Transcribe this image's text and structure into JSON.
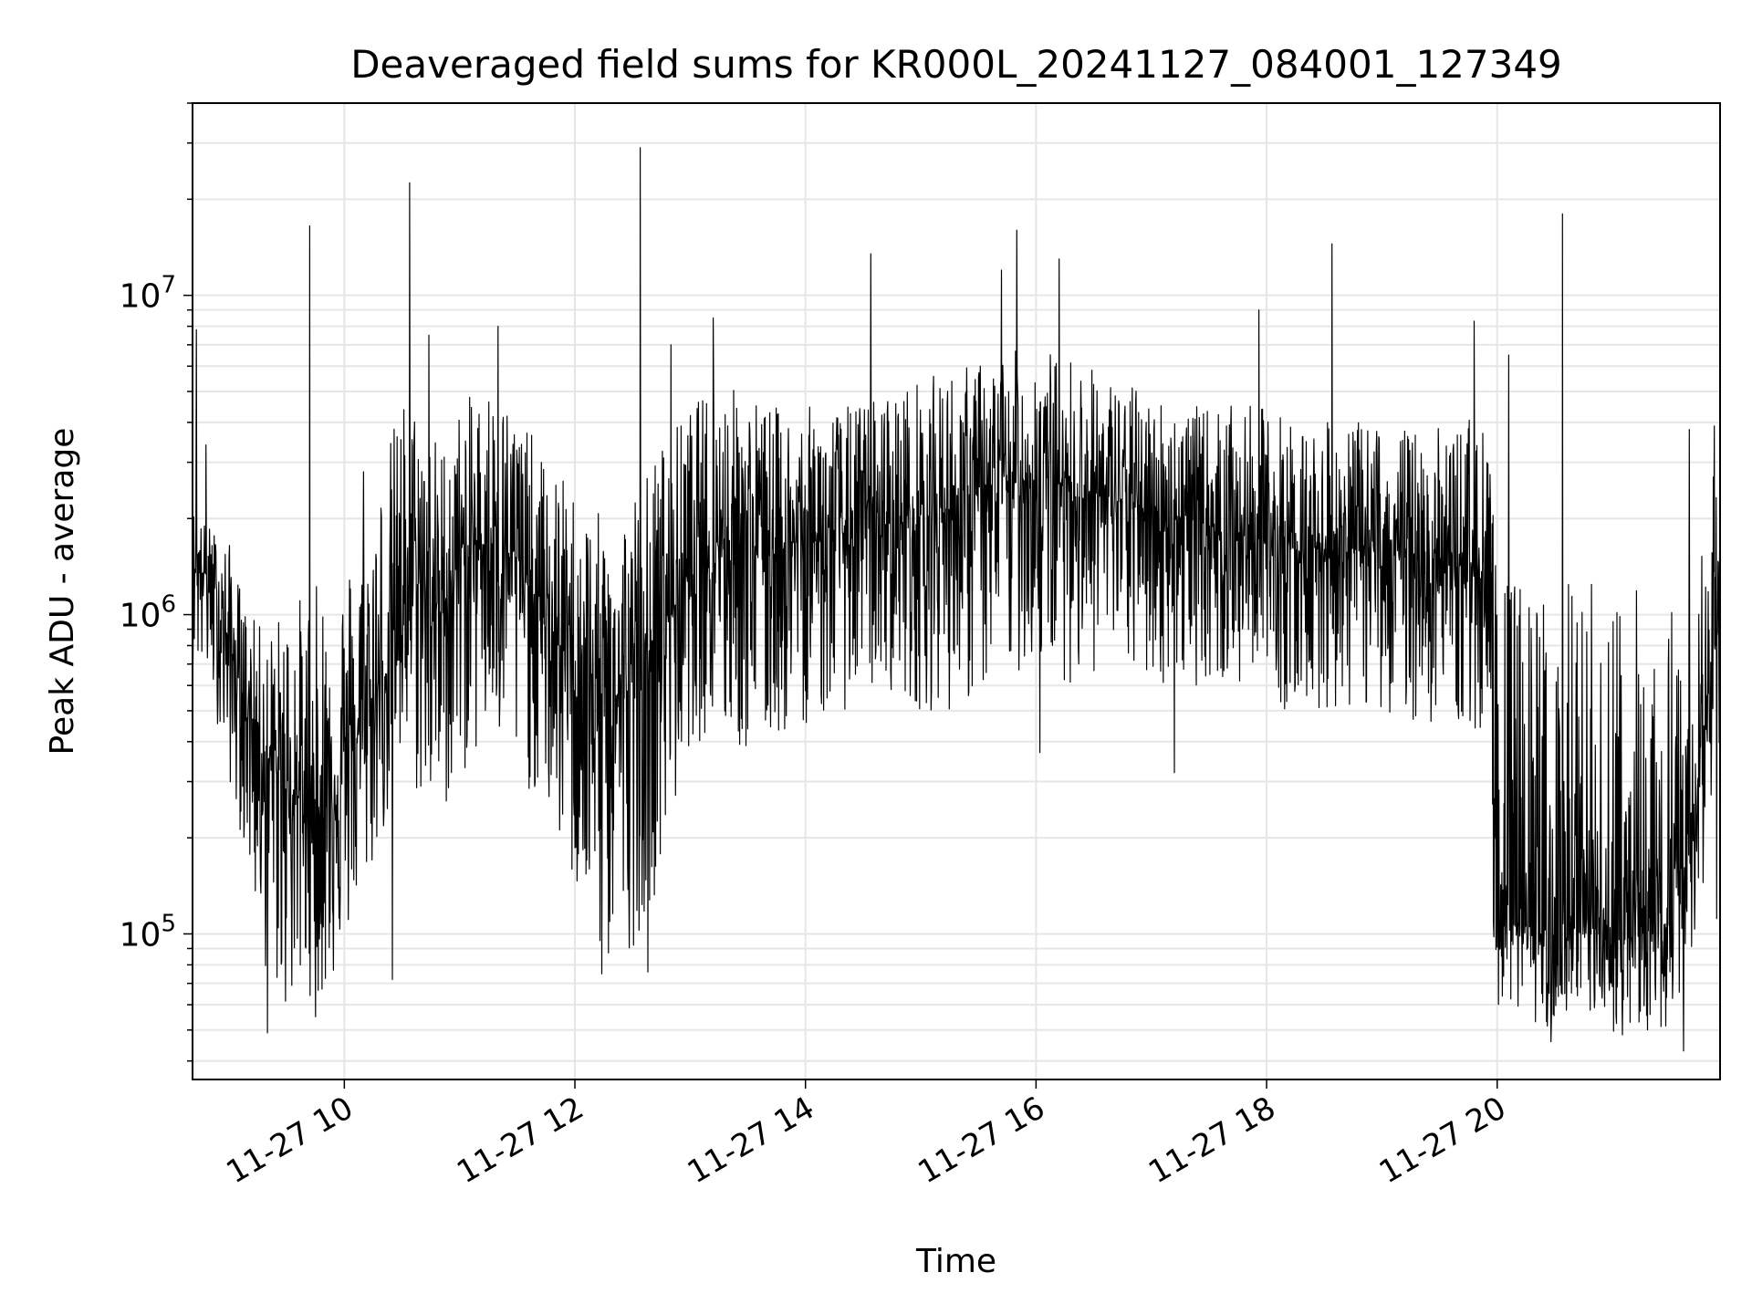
{
  "chart_data": {
    "type": "line",
    "title": "Deaveraged field sums for KR000L_20241127_084001_127349",
    "xlabel": "Time",
    "ylabel": "Peak ADU - average",
    "y_scale": "log",
    "x_range": [
      "2024-11-27 08:41",
      "2024-11-27 21:56"
    ],
    "ylim": [
      35000,
      40000000
    ],
    "grid": true,
    "line_color": "#000000",
    "x_tick_labels": [
      "11-27 10",
      "11-27 12",
      "11-27 14",
      "11-27 16",
      "11-27 18",
      "11-27 20"
    ],
    "x_tick_values": [
      "2024-11-27 10:00",
      "2024-11-27 12:00",
      "2024-11-27 14:00",
      "2024-11-27 16:00",
      "2024-11-27 18:00",
      "2024-11-27 20:00"
    ],
    "y_tick_labels": [
      {
        "base": "10",
        "exp": "5"
      },
      {
        "base": "10",
        "exp": "6"
      },
      {
        "base": "10",
        "exp": "7"
      }
    ],
    "y_tick_values": [
      100000,
      1000000,
      10000000
    ],
    "series": [
      {
        "x": [
          "2024-11-27 08:41",
          "2024-11-27 08:45",
          "2024-11-27 08:50",
          "2024-11-27 09:00",
          "2024-11-27 09:10",
          "2024-11-27 09:20",
          "2024-11-27 09:30",
          "2024-11-27 09:40",
          "2024-11-27 09:50",
          "2024-11-27 10:00",
          "2024-11-27 10:10",
          "2024-11-27 10:20",
          "2024-11-27 10:30",
          "2024-11-27 10:40",
          "2024-11-27 10:50",
          "2024-11-27 11:00",
          "2024-11-27 11:15",
          "2024-11-27 11:30",
          "2024-11-27 11:45",
          "2024-11-27 12:00",
          "2024-11-27 12:15",
          "2024-11-27 12:30",
          "2024-11-27 12:45",
          "2024-11-27 13:00",
          "2024-11-27 13:15",
          "2024-11-27 13:30",
          "2024-11-27 13:45",
          "2024-11-27 14:00",
          "2024-11-27 14:20",
          "2024-11-27 14:40",
          "2024-11-27 15:00",
          "2024-11-27 15:20",
          "2024-11-27 15:40",
          "2024-11-27 16:00",
          "2024-11-27 16:20",
          "2024-11-27 16:40",
          "2024-11-27 17:00",
          "2024-11-27 17:20",
          "2024-11-27 17:40",
          "2024-11-27 18:00",
          "2024-11-27 18:20",
          "2024-11-27 18:40",
          "2024-11-27 19:00",
          "2024-11-27 19:20",
          "2024-11-27 19:40",
          "2024-11-27 19:50",
          "2024-11-27 19:55",
          "2024-11-27 20:00",
          "2024-11-27 20:15",
          "2024-11-27 20:30",
          "2024-11-27 20:45",
          "2024-11-27 21:00",
          "2024-11-27 21:15",
          "2024-11-27 21:30",
          "2024-11-27 21:45",
          "2024-11-27 21:56"
        ],
        "typical": [
          1500000,
          1400000,
          1300000,
          800000,
          500000,
          350000,
          300000,
          250000,
          250000,
          350000,
          450000,
          600000,
          1200000,
          1300000,
          1000000,
          1500000,
          1700000,
          1500000,
          900000,
          700000,
          500000,
          600000,
          900000,
          1400000,
          1800000,
          1700000,
          1600000,
          1700000,
          1800000,
          1900000,
          2000000,
          2200000,
          2500000,
          2700000,
          2500000,
          2300000,
          2100000,
          2000000,
          1800000,
          1700000,
          1600000,
          1600000,
          1600000,
          1500000,
          1400000,
          1500000,
          900000,
          150000,
          100000,
          100000,
          100000,
          95000,
          100000,
          110000,
          300000,
          1200000
        ],
        "low": [
          700000,
          650000,
          600000,
          300000,
          160000,
          70000,
          55000,
          65000,
          60000,
          90000,
          130000,
          200000,
          300000,
          250000,
          220000,
          300000,
          400000,
          300000,
          250000,
          130000,
          75000,
          90000,
          150000,
          400000,
          400000,
          350000,
          400000,
          450000,
          500000,
          600000,
          500000,
          500000,
          600000,
          700000,
          600000,
          700000,
          600000,
          600000,
          600000,
          500000,
          500000,
          500000,
          500000,
          450000,
          450000,
          400000,
          200000,
          60000,
          55000,
          48000,
          50000,
          48000,
          47000,
          50000,
          110000,
          90000
        ],
        "high": [
          2200000,
          2000000,
          1900000,
          1700000,
          1000000,
          900000,
          1100000,
          1200000,
          1300000,
          1400000,
          2000000,
          3000000,
          5000000,
          4500000,
          3500000,
          4500000,
          5500000,
          4500000,
          3000000,
          2500000,
          2000000,
          2500000,
          3500000,
          4500000,
          5500000,
          5000000,
          4500000,
          4500000,
          4500000,
          5000000,
          5500000,
          6000000,
          6500000,
          7000000,
          6500000,
          5500000,
          5000000,
          4500000,
          4500000,
          4500000,
          4000000,
          4000000,
          4000000,
          3800000,
          4000000,
          4500000,
          4000000,
          1300000,
          1300000,
          1300000,
          1300000,
          1300000,
          1300000,
          1200000,
          1500000,
          3800000
        ],
        "spikes": [
          {
            "x": "2024-11-27 08:43",
            "y": 7800000
          },
          {
            "x": "2024-11-27 08:48",
            "y": 3400000
          },
          {
            "x": "2024-11-27 09:42",
            "y": 16500000
          },
          {
            "x": "2024-11-27 10:10",
            "y": 2800000
          },
          {
            "x": "2024-11-27 10:34",
            "y": 22500000
          },
          {
            "x": "2024-11-27 10:44",
            "y": 7500000
          },
          {
            "x": "2024-11-27 11:20",
            "y": 8000000
          },
          {
            "x": "2024-11-27 12:34",
            "y": 29000000
          },
          {
            "x": "2024-11-27 12:50",
            "y": 7000000
          },
          {
            "x": "2024-11-27 13:12",
            "y": 8500000
          },
          {
            "x": "2024-11-27 14:34",
            "y": 13500000
          },
          {
            "x": "2024-11-27 15:42",
            "y": 12000000
          },
          {
            "x": "2024-11-27 15:50",
            "y": 16000000
          },
          {
            "x": "2024-11-27 16:12",
            "y": 13000000
          },
          {
            "x": "2024-11-27 17:56",
            "y": 9000000
          },
          {
            "x": "2024-11-27 18:34",
            "y": 14500000
          },
          {
            "x": "2024-11-27 19:48",
            "y": 8300000
          },
          {
            "x": "2024-11-27 20:06",
            "y": 6500000
          },
          {
            "x": "2024-11-27 20:34",
            "y": 18000000
          },
          {
            "x": "2024-11-27 21:40",
            "y": 3800000
          },
          {
            "x": "2024-11-27 21:53",
            "y": 3900000
          }
        ],
        "dips": [
          {
            "x": "2024-11-27 09:20",
            "y": 49000
          },
          {
            "x": "2024-11-27 09:45",
            "y": 55000
          },
          {
            "x": "2024-11-27 10:25",
            "y": 72000
          },
          {
            "x": "2024-11-27 12:14",
            "y": 75000
          },
          {
            "x": "2024-11-27 12:38",
            "y": 76000
          },
          {
            "x": "2024-11-27 16:02",
            "y": 370000
          },
          {
            "x": "2024-11-27 17:12",
            "y": 320000
          },
          {
            "x": "2024-11-27 20:28",
            "y": 46000
          },
          {
            "x": "2024-11-27 21:37",
            "y": 43000
          }
        ]
      }
    ]
  }
}
